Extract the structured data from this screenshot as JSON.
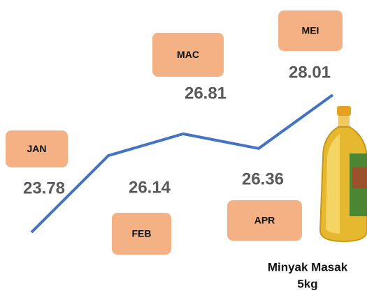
{
  "chart_data": {
    "type": "line",
    "categories": [
      "JAN",
      "FEB",
      "MAC",
      "APR",
      "MEI"
    ],
    "values": [
      23.78,
      26.14,
      26.81,
      26.36,
      28.01
    ],
    "color": "#4472c4",
    "caption": [
      "Minyak Masak",
      "5kg"
    ]
  }
}
